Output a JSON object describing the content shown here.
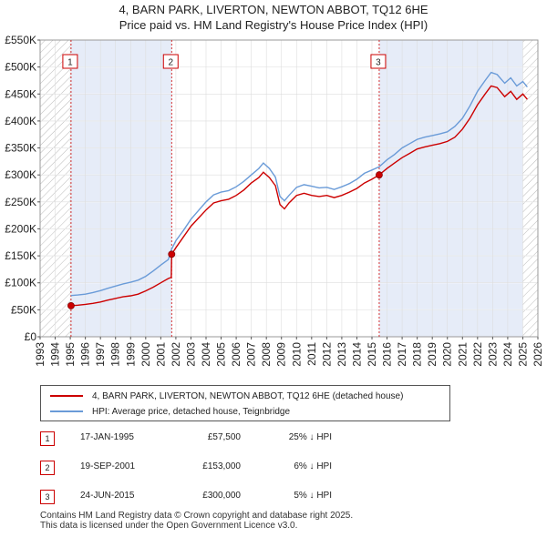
{
  "chart_data": {
    "type": "line",
    "title_lines": [
      "4, BARN PARK, LIVERTON, NEWTON ABBOT, TQ12 6HE",
      "Price paid vs. HM Land Registry's House Price Index (HPI)"
    ],
    "x_ticks": [
      "1993",
      "1994",
      "1995",
      "1996",
      "1997",
      "1998",
      "1999",
      "2000",
      "2001",
      "2002",
      "2003",
      "2004",
      "2005",
      "2006",
      "2007",
      "2008",
      "2009",
      "2010",
      "2011",
      "2012",
      "2013",
      "2014",
      "2015",
      "2016",
      "2017",
      "2018",
      "2019",
      "2020",
      "2021",
      "2022",
      "2023",
      "2024",
      "2025",
      "2026"
    ],
    "y_ticks": [
      "£0",
      "£50K",
      "£100K",
      "£150K",
      "£200K",
      "£250K",
      "£300K",
      "£350K",
      "£400K",
      "£450K",
      "£500K",
      "£550K"
    ],
    "xlim": [
      1993,
      2026
    ],
    "ylim": [
      0,
      550000
    ],
    "colors": {
      "price": "#cc0000",
      "hpi": "#6a9bd8",
      "shade": "#e6ecf8",
      "hatch": "#bbbbbb"
    },
    "shaded_regions": [
      [
        1995.05,
        2001.72
      ],
      [
        2015.48,
        2025.0
      ]
    ],
    "hatched_regions": [
      [
        1993,
        1995.05
      ],
      [
        2025.0,
        2026
      ]
    ],
    "series": [
      {
        "name": "4, BARN PARK, LIVERTON, NEWTON ABBOT, TQ12 6HE (detached house)",
        "color": "#cc0000",
        "points": [
          [
            1995.05,
            57500
          ],
          [
            1995.5,
            58500
          ],
          [
            1996,
            60000
          ],
          [
            1996.5,
            62000
          ],
          [
            1997,
            64500
          ],
          [
            1997.5,
            68000
          ],
          [
            1998,
            71000
          ],
          [
            1998.5,
            74000
          ],
          [
            1999,
            76000
          ],
          [
            1999.5,
            79000
          ],
          [
            2000,
            85000
          ],
          [
            2000.5,
            92000
          ],
          [
            2001,
            100000
          ],
          [
            2001.5,
            108000
          ],
          [
            2001.7,
            110000
          ],
          [
            2001.72,
            153000
          ],
          [
            2002,
            165000
          ],
          [
            2002.5,
            185000
          ],
          [
            2003,
            205000
          ],
          [
            2003.5,
            220000
          ],
          [
            2004,
            235000
          ],
          [
            2004.5,
            248000
          ],
          [
            2005,
            252000
          ],
          [
            2005.5,
            255000
          ],
          [
            2006,
            262000
          ],
          [
            2006.5,
            272000
          ],
          [
            2007,
            285000
          ],
          [
            2007.5,
            295000
          ],
          [
            2007.8,
            305000
          ],
          [
            2008.2,
            295000
          ],
          [
            2008.6,
            280000
          ],
          [
            2008.9,
            245000
          ],
          [
            2009.2,
            237000
          ],
          [
            2009.5,
            248000
          ],
          [
            2010,
            262000
          ],
          [
            2010.5,
            266000
          ],
          [
            2011,
            262000
          ],
          [
            2011.5,
            260000
          ],
          [
            2012,
            262000
          ],
          [
            2012.5,
            258000
          ],
          [
            2013,
            262000
          ],
          [
            2013.5,
            268000
          ],
          [
            2014,
            275000
          ],
          [
            2014.5,
            285000
          ],
          [
            2015,
            292000
          ],
          [
            2015.48,
            300000
          ],
          [
            2016,
            312000
          ],
          [
            2016.5,
            322000
          ],
          [
            2017,
            332000
          ],
          [
            2017.5,
            340000
          ],
          [
            2018,
            348000
          ],
          [
            2018.5,
            352000
          ],
          [
            2019,
            355000
          ],
          [
            2019.5,
            358000
          ],
          [
            2020,
            362000
          ],
          [
            2020.5,
            370000
          ],
          [
            2021,
            385000
          ],
          [
            2021.5,
            405000
          ],
          [
            2022,
            430000
          ],
          [
            2022.5,
            450000
          ],
          [
            2022.9,
            465000
          ],
          [
            2023.3,
            462000
          ],
          [
            2023.8,
            445000
          ],
          [
            2024.2,
            455000
          ],
          [
            2024.6,
            440000
          ],
          [
            2025.0,
            450000
          ],
          [
            2025.3,
            440000
          ]
        ]
      },
      {
        "name": "HPI: Average price, detached house, Teignbridge",
        "color": "#6a9bd8",
        "points": [
          [
            1995.05,
            76500
          ],
          [
            1995.5,
            77500
          ],
          [
            1996,
            79000
          ],
          [
            1996.5,
            82000
          ],
          [
            1997,
            85500
          ],
          [
            1997.5,
            90000
          ],
          [
            1998,
            94000
          ],
          [
            1998.5,
            98000
          ],
          [
            1999,
            101000
          ],
          [
            1999.5,
            105000
          ],
          [
            2000,
            112000
          ],
          [
            2000.5,
            122000
          ],
          [
            2001,
            133000
          ],
          [
            2001.5,
            143000
          ],
          [
            2001.72,
            162500
          ],
          [
            2002,
            178000
          ],
          [
            2002.5,
            197000
          ],
          [
            2003,
            218000
          ],
          [
            2003.5,
            234000
          ],
          [
            2004,
            250000
          ],
          [
            2004.5,
            263000
          ],
          [
            2005,
            268000
          ],
          [
            2005.5,
            271000
          ],
          [
            2006,
            278000
          ],
          [
            2006.5,
            288000
          ],
          [
            2007,
            300000
          ],
          [
            2007.5,
            312000
          ],
          [
            2007.8,
            322000
          ],
          [
            2008.2,
            312000
          ],
          [
            2008.6,
            296000
          ],
          [
            2008.9,
            260000
          ],
          [
            2009.2,
            252000
          ],
          [
            2009.5,
            262000
          ],
          [
            2010,
            277000
          ],
          [
            2010.5,
            282000
          ],
          [
            2011,
            279000
          ],
          [
            2011.5,
            276000
          ],
          [
            2012,
            277000
          ],
          [
            2012.5,
            273000
          ],
          [
            2013,
            278000
          ],
          [
            2013.5,
            284000
          ],
          [
            2014,
            292000
          ],
          [
            2014.5,
            303000
          ],
          [
            2015,
            309000
          ],
          [
            2015.48,
            315000
          ],
          [
            2016,
            328000
          ],
          [
            2016.5,
            338000
          ],
          [
            2017,
            350000
          ],
          [
            2017.5,
            358000
          ],
          [
            2018,
            366000
          ],
          [
            2018.5,
            370000
          ],
          [
            2019,
            373000
          ],
          [
            2019.5,
            376000
          ],
          [
            2020,
            380000
          ],
          [
            2020.5,
            390000
          ],
          [
            2021,
            405000
          ],
          [
            2021.5,
            428000
          ],
          [
            2022,
            455000
          ],
          [
            2022.5,
            475000
          ],
          [
            2022.9,
            490000
          ],
          [
            2023.3,
            486000
          ],
          [
            2023.8,
            470000
          ],
          [
            2024.2,
            480000
          ],
          [
            2024.6,
            465000
          ],
          [
            2025.0,
            473000
          ],
          [
            2025.3,
            463000
          ]
        ]
      }
    ],
    "sales": [
      {
        "num": "1",
        "x": 1995.05,
        "price": 57500
      },
      {
        "num": "2",
        "x": 2001.72,
        "price": 153000
      },
      {
        "num": "3",
        "x": 2015.48,
        "price": 300000
      }
    ]
  },
  "legend": {
    "items": [
      {
        "label": "4, BARN PARK, LIVERTON, NEWTON ABBOT, TQ12 6HE (detached house)",
        "color": "#cc0000"
      },
      {
        "label": "HPI: Average price, detached house, Teignbridge",
        "color": "#6a9bd8"
      }
    ]
  },
  "sales_table": [
    {
      "num": "1",
      "date": "17-JAN-1995",
      "price": "£57,500",
      "hpi": "25% ↓ HPI"
    },
    {
      "num": "2",
      "date": "19-SEP-2001",
      "price": "£153,000",
      "hpi": "6% ↓ HPI"
    },
    {
      "num": "3",
      "date": "24-JUN-2015",
      "price": "£300,000",
      "hpi": "5% ↓ HPI"
    }
  ],
  "footer": {
    "line1": "Contains HM Land Registry data © Crown copyright and database right 2025.",
    "line2": "This data is licensed under the Open Government Licence v3.0."
  }
}
